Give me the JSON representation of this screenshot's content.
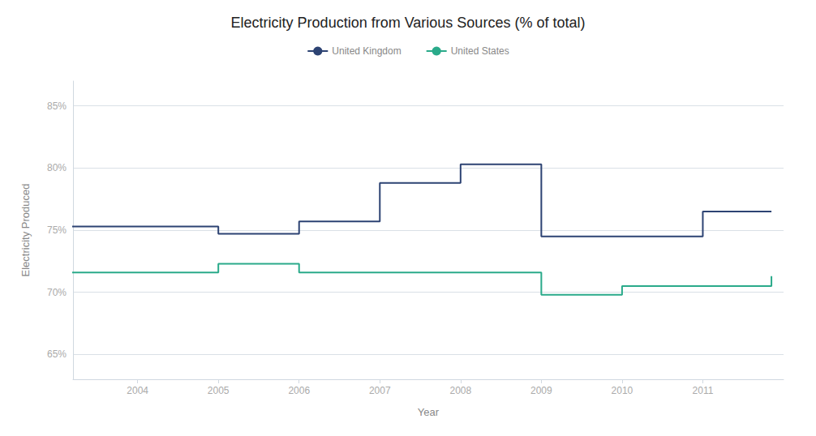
{
  "chart_data": {
    "type": "step",
    "title": "Electricity Production from Various Sources (% of total)",
    "xlabel": "Year",
    "ylabel": "Electricity Produced",
    "x": [
      2003,
      2004,
      2005,
      2006,
      2007,
      2008,
      2009,
      2010,
      2011,
      2011.85
    ],
    "series": [
      {
        "name": "United Kingdom",
        "color": "#2d4373",
        "values": [
          75.3,
          75.3,
          74.7,
          75.7,
          78.8,
          80.3,
          74.5,
          74.5,
          76.5,
          76.5
        ]
      },
      {
        "name": "United States",
        "color": "#2aaa8a",
        "values": [
          71.6,
          71.6,
          72.3,
          71.6,
          71.6,
          71.6,
          69.8,
          70.5,
          70.5,
          71.3
        ]
      }
    ],
    "xlim": [
      2003.2,
      2012.0
    ],
    "xticks": [
      2004,
      2005,
      2006,
      2007,
      2008,
      2009,
      2010,
      2011
    ],
    "ylim": [
      63,
      87
    ],
    "yticks": [
      {
        "value": 65,
        "label": "65%"
      },
      {
        "value": 70,
        "label": "70%"
      },
      {
        "value": 75,
        "label": "75%"
      },
      {
        "value": 80,
        "label": "80%"
      },
      {
        "value": 85,
        "label": "85%"
      }
    ],
    "grid": true,
    "legend": "top"
  }
}
